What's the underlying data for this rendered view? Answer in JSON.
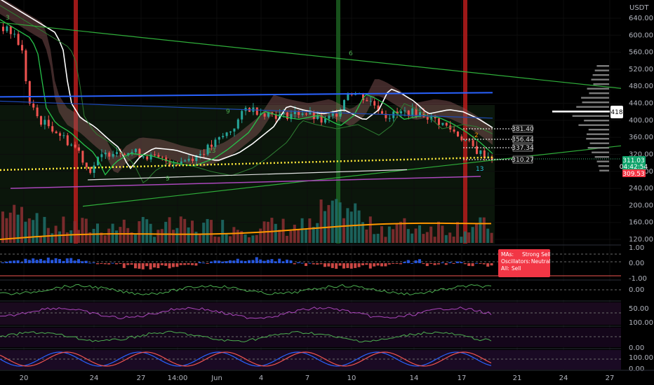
{
  "chart_data": {
    "type": "candlestick",
    "quote_currency": "USDT",
    "price_axis": {
      "ticks": [
        "640.00",
        "600.00",
        "560.00",
        "520.00",
        "480.00",
        "440.00",
        "400.00",
        "360.00",
        "320.00",
        "280.00",
        "240.00",
        "200.00",
        "160.00",
        "120.00"
      ],
      "current_price": "311.03",
      "countdown": "04:42:54",
      "lower_label": "309.53",
      "profile_tag": "418"
    },
    "time_axis": {
      "ticks": [
        "20",
        "24",
        "27",
        "14:00",
        "Jun",
        "4",
        "7",
        "10",
        "14",
        "17",
        "21",
        "24",
        "27"
      ]
    },
    "level_labels": [
      "381.40",
      "356.44",
      "337.34",
      "310.27"
    ],
    "markers": {
      "sequence_up": [
        "3",
        "9",
        "13",
        "9",
        "6",
        "9"
      ],
      "sequence_down": [
        "2",
        "13"
      ]
    },
    "technical_rating": {
      "mas_label": "MAs:",
      "mas_value": "Strong Sell",
      "osc_label": "Oscillators:",
      "osc_value": "Neutral",
      "all_label": "All:",
      "all_value": "Sell"
    },
    "indicator_panes": [
      {
        "ticks": [
          "1.00",
          "0.00",
          "-1.00"
        ]
      },
      {
        "ticks": [
          "0.00"
        ]
      },
      {
        "ticks": [
          "50.00"
        ]
      },
      {
        "ticks": [
          "100.00"
        ]
      },
      {
        "ticks": [
          "0.00"
        ]
      },
      {
        "ticks": [
          "100.00",
          "0.00"
        ]
      }
    ],
    "colors": {
      "up": "#26a69a",
      "down": "#ef5350",
      "ema_green": "#26c24a",
      "ema_white": "#ffffff",
      "blue_line": "#2962ff",
      "yellow_dots": "#ffeb3b",
      "orange_line": "#ff9800",
      "purple_line": "#ab47bc",
      "rating_red": "#f23645",
      "vertical_red": "#b71c1c",
      "vertical_green": "#1b5e20"
    }
  }
}
